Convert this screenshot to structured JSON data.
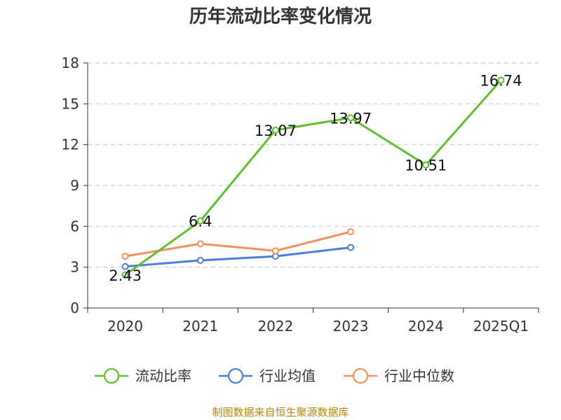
{
  "chart_data": {
    "type": "line",
    "title": "历年流动比率变化情况",
    "categories": [
      "2020",
      "2021",
      "2022",
      "2023",
      "2024",
      "2025Q1"
    ],
    "y_ticks": [
      "0",
      "3",
      "6",
      "9",
      "12",
      "15",
      "18"
    ],
    "ylim": [
      0,
      18
    ],
    "grid": true,
    "series": [
      {
        "name": "流动比率",
        "color": "#5cc22b",
        "values": [
          2.43,
          6.4,
          13.07,
          13.97,
          10.51,
          16.74
        ],
        "labels": [
          "2.43",
          "6.4",
          "13.07",
          "13.97",
          "10.51",
          "16.74"
        ]
      },
      {
        "name": "行业均值",
        "color": "#4a7fdb",
        "values": [
          3.05,
          3.5,
          3.8,
          4.45,
          null,
          null
        ]
      },
      {
        "name": "行业中位数",
        "color": "#f7905a",
        "values": [
          3.8,
          4.72,
          4.2,
          5.6,
          null,
          null
        ]
      }
    ],
    "legend_position": "bottom",
    "source": "制图数据来自恒生聚源数据库"
  }
}
